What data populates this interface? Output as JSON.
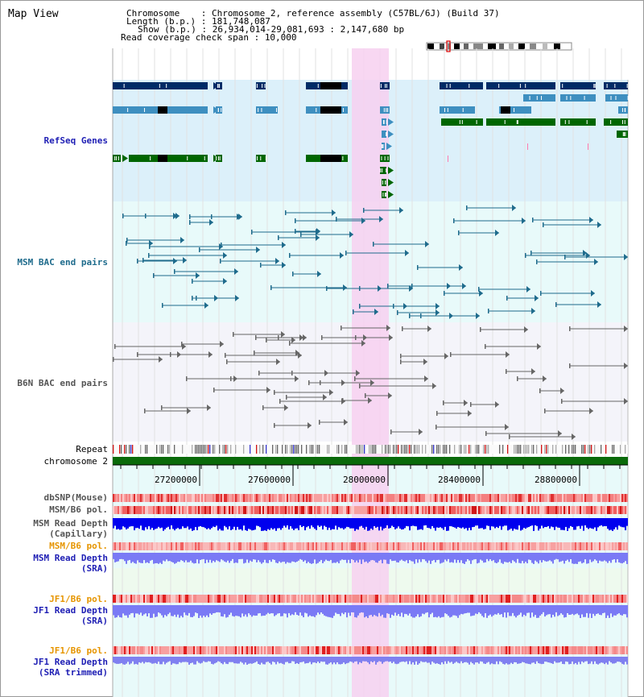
{
  "view_title": "Map View",
  "info": {
    "chromosome_label": "Chromosome    : ",
    "chromosome_value": "Chromosome 2, reference assembly (C57BL/6J) (Build 37)",
    "length_label": "Length (b.p.) : ",
    "length_value": "181,748,087",
    "show_label": "Show (b.p.) : ",
    "show_value": "26,934,014-29,081,693 : 2,147,680 bp",
    "coverage_label": "Read coverage check span : ",
    "coverage_value": "10,000"
  },
  "tracks": {
    "refseq": "RefSeq Genes",
    "msm_bac": "MSM BAC end pairs",
    "b6n_bac": "B6N BAC end pairs",
    "repeat": "Repeat",
    "chromosome": "chromosome 2",
    "dbsnp": "dbSNP(Mouse)",
    "msm_b6_pol_1": "MSM/B6 pol.",
    "msm_read_depth_cap_1": "MSM Read Depth",
    "msm_read_depth_cap_2": "(Capillary)",
    "msm_b6_pol_2": "MSM/B6 pol.",
    "msm_read_depth_sra_1": "MSM Read Depth",
    "msm_read_depth_sra_2": "(SRA)",
    "jf1_b6_pol_1": "JF1/B6 pol.",
    "jf1_read_depth_sra_1": "JF1 Read Depth",
    "jf1_read_depth_sra_2": "(SRA)",
    "jf1_b6_pol_2": "JF1/B6 pol.",
    "jf1_read_depth_trim_1": "JF1 Read Depth",
    "jf1_read_depth_trim_2": "(SRA trimmed)"
  },
  "axis": {
    "ticks": [
      "27200000",
      "27600000",
      "28000000",
      "28400000",
      "28800000"
    ]
  },
  "colors": {
    "refseq_dark": "#002b66",
    "refseq_mid": "#3e8fc0",
    "refseq_green": "#006600",
    "msm_line": "#1e6b8c",
    "b6n_line": "#666666",
    "highlight": "#f7d0f0",
    "depth_dark": "#0000ee",
    "depth_light": "#7a7af5",
    "pol_red": "#ee3333",
    "pol_orange": "#e69500",
    "label_blue": "#1e1eb4",
    "label_teal": "#1e6b8c",
    "label_gray": "#555555"
  }
}
